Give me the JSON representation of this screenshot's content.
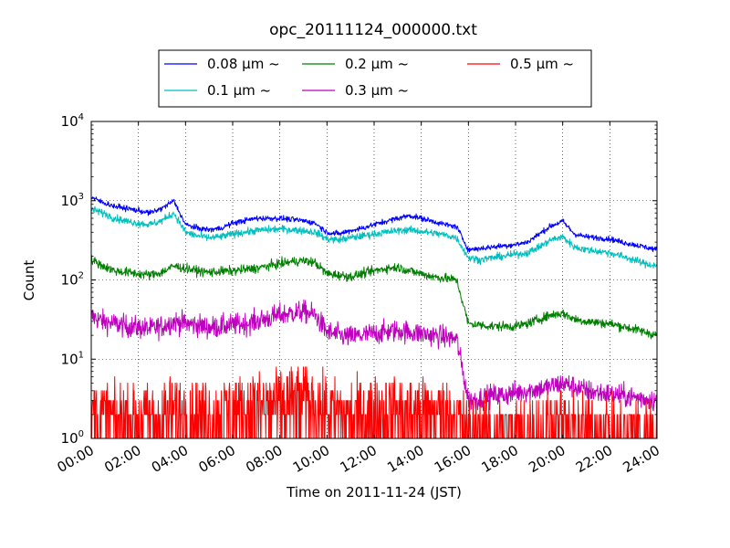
{
  "chart_data": {
    "type": "line",
    "title": "opc_20111124_000000.txt",
    "xlabel": "Time on 2011-11-24 (JST)",
    "ylabel": "Count",
    "y_scale": "log",
    "ylim": [
      1,
      10000
    ],
    "y_ticks": [
      {
        "value": 1,
        "base": "10",
        "exp": "0"
      },
      {
        "value": 10,
        "base": "10",
        "exp": "1"
      },
      {
        "value": 100,
        "base": "10",
        "exp": "2"
      },
      {
        "value": 1000,
        "base": "10",
        "exp": "3"
      },
      {
        "value": 10000,
        "base": "10",
        "exp": "4"
      }
    ],
    "xlim": [
      "00:00",
      "24:00"
    ],
    "x_ticks": [
      "00:00",
      "02:00",
      "04:00",
      "06:00",
      "08:00",
      "10:00",
      "12:00",
      "14:00",
      "16:00",
      "18:00",
      "20:00",
      "22:00",
      "24:00"
    ],
    "grid": true,
    "legend_position": "top-center, above plot",
    "x": [
      "00:00",
      "00:30",
      "01:00",
      "01:30",
      "02:00",
      "02:30",
      "03:00",
      "03:30",
      "04:00",
      "04:30",
      "05:00",
      "05:30",
      "06:00",
      "06:30",
      "07:00",
      "07:30",
      "08:00",
      "08:30",
      "09:00",
      "09:30",
      "10:00",
      "10:30",
      "11:00",
      "11:30",
      "12:00",
      "12:30",
      "13:00",
      "13:30",
      "14:00",
      "14:30",
      "15:00",
      "15:30",
      "16:00",
      "16:30",
      "17:00",
      "17:30",
      "18:00",
      "18:30",
      "19:00",
      "19:30",
      "20:00",
      "20:30",
      "21:00",
      "21:30",
      "22:00",
      "22:30",
      "23:00",
      "23:30",
      "24:00"
    ],
    "series": [
      {
        "name": "0.08 μm ~",
        "color": "#0000ff",
        "values": [
          1100,
          950,
          850,
          800,
          750,
          700,
          800,
          1000,
          500,
          450,
          430,
          450,
          520,
          560,
          600,
          600,
          600,
          580,
          560,
          520,
          400,
          380,
          420,
          450,
          500,
          550,
          600,
          650,
          600,
          550,
          500,
          470,
          240,
          250,
          260,
          270,
          280,
          300,
          380,
          480,
          550,
          380,
          350,
          340,
          330,
          300,
          280,
          260,
          240
        ]
      },
      {
        "name": "0.1 μm ~",
        "color": "#00bfbf",
        "values": [
          780,
          700,
          600,
          550,
          520,
          500,
          560,
          700,
          400,
          360,
          340,
          350,
          380,
          400,
          420,
          430,
          440,
          430,
          420,
          400,
          330,
          320,
          340,
          360,
          380,
          400,
          420,
          430,
          410,
          390,
          370,
          340,
          190,
          180,
          190,
          200,
          210,
          220,
          260,
          320,
          350,
          260,
          240,
          230,
          220,
          200,
          180,
          160,
          150
        ]
      },
      {
        "name": "0.2 μm ~",
        "color": "#008000",
        "values": [
          180,
          150,
          130,
          125,
          120,
          115,
          125,
          150,
          140,
          130,
          125,
          128,
          130,
          135,
          140,
          150,
          160,
          170,
          175,
          165,
          120,
          115,
          110,
          120,
          130,
          140,
          145,
          130,
          120,
          110,
          105,
          100,
          28,
          27,
          26,
          26,
          26,
          28,
          32,
          36,
          38,
          32,
          30,
          29,
          28,
          26,
          24,
          22,
          20
        ]
      },
      {
        "name": "0.3 μm ~",
        "color": "#bf00bf",
        "values": [
          35,
          30,
          28,
          26,
          25,
          24,
          26,
          30,
          28,
          27,
          25,
          26,
          27,
          28,
          30,
          33,
          36,
          38,
          40,
          36,
          22,
          20,
          19,
          20,
          21,
          22,
          23,
          22,
          21,
          20,
          19,
          18,
          3,
          3.2,
          3.5,
          3.5,
          3.8,
          4,
          4.2,
          4.5,
          5,
          4.5,
          4,
          3.8,
          3.6,
          3.5,
          3.3,
          3.2,
          3
        ]
      },
      {
        "name": "0.5 μm ~",
        "color": "#ff0000",
        "values": [
          2,
          2,
          1.8,
          1.8,
          1.8,
          1.8,
          2,
          2.2,
          2.2,
          2,
          2,
          2,
          2.2,
          2.3,
          2.5,
          2.6,
          2.8,
          3,
          3,
          2.8,
          2.2,
          2,
          2,
          2,
          2.2,
          2.2,
          2.3,
          2.2,
          2.1,
          2,
          2,
          2,
          1.2,
          1.2,
          1.2,
          1.2,
          1.2,
          1.2,
          1.3,
          1.4,
          1.5,
          1.4,
          1.3,
          1.3,
          1.3,
          1.2,
          1.2,
          1.2,
          1.2
        ]
      }
    ]
  }
}
